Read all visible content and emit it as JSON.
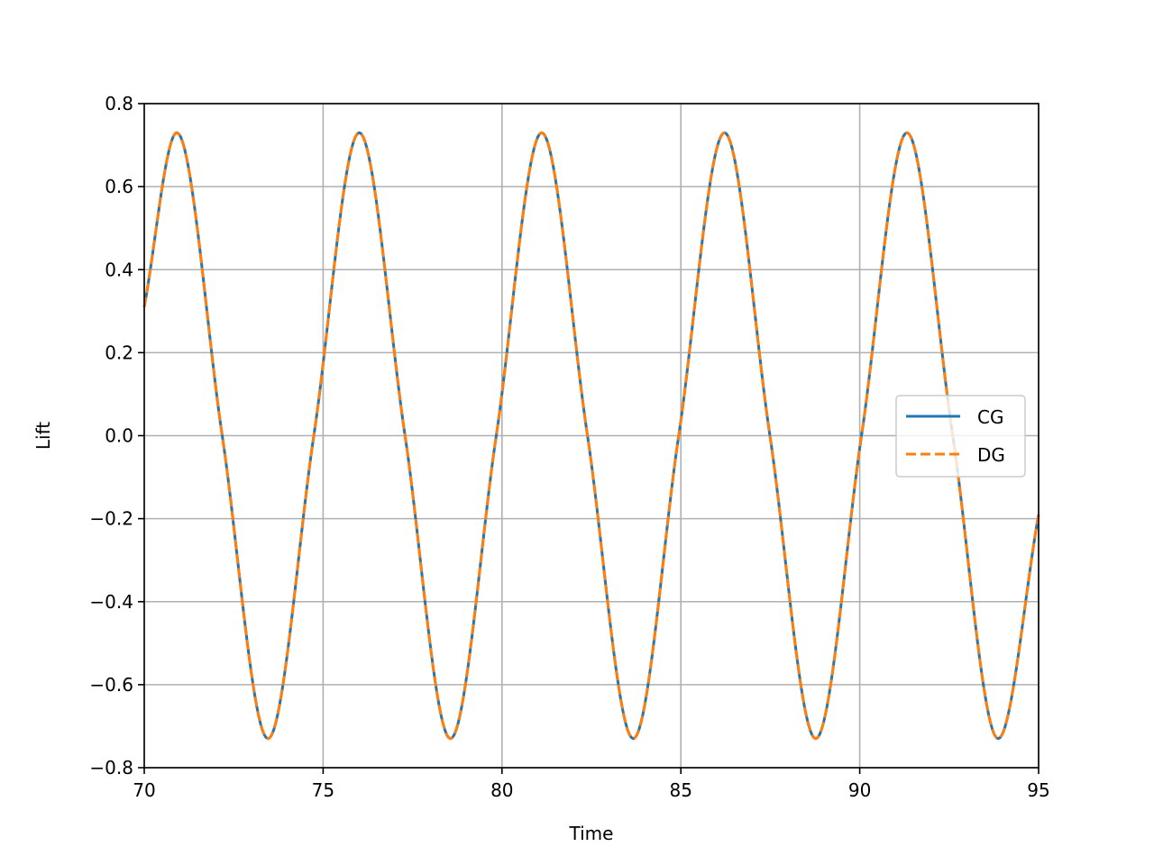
{
  "chart_data": {
    "type": "line",
    "title": "",
    "xlabel": "Time",
    "ylabel": "Lift",
    "xlim": [
      70,
      95
    ],
    "ylim": [
      -0.8,
      0.8
    ],
    "x_ticks": [
      70,
      75,
      80,
      85,
      90,
      95
    ],
    "x_tick_labels": [
      "70",
      "75",
      "80",
      "85",
      "90",
      "95"
    ],
    "y_ticks": [
      -0.8,
      -0.6,
      -0.4,
      -0.2,
      0.0,
      0.2,
      0.4,
      0.6,
      0.8
    ],
    "y_tick_labels": [
      "−0.8",
      "−0.6",
      "−0.4",
      "−0.2",
      "0.0",
      "0.2",
      "0.4",
      "0.6",
      "0.8"
    ],
    "grid": true,
    "legend_position": "center-right",
    "series": [
      {
        "name": "CG",
        "color": "#1f77b4",
        "style": "solid",
        "x": [
          70.0,
          70.91,
          72.18,
          73.46,
          74.74,
          76.01,
          77.29,
          78.56,
          79.84,
          81.11,
          82.39,
          83.67,
          84.94,
          86.22,
          87.49,
          88.77,
          90.05,
          91.32,
          92.6,
          93.87,
          95.0
        ],
        "y": [
          0.31,
          0.73,
          0.0,
          -0.73,
          0.0,
          0.73,
          0.0,
          -0.73,
          0.0,
          0.73,
          0.0,
          -0.73,
          0.0,
          0.73,
          0.0,
          -0.73,
          0.0,
          0.73,
          0.0,
          -0.73,
          -0.19
        ]
      },
      {
        "name": "DG",
        "color": "#ff7f0e",
        "style": "dashed",
        "x": [
          70.0,
          70.91,
          72.18,
          73.46,
          74.74,
          76.01,
          77.29,
          78.56,
          79.84,
          81.11,
          82.39,
          83.67,
          84.94,
          86.22,
          87.49,
          88.77,
          90.05,
          91.32,
          92.6,
          93.87,
          95.0
        ],
        "y": [
          0.31,
          0.73,
          0.0,
          -0.73,
          0.0,
          0.73,
          0.0,
          -0.73,
          0.0,
          0.73,
          0.0,
          -0.73,
          0.0,
          0.73,
          0.0,
          -0.73,
          0.0,
          0.73,
          0.0,
          -0.73,
          -0.19
        ]
      }
    ]
  }
}
